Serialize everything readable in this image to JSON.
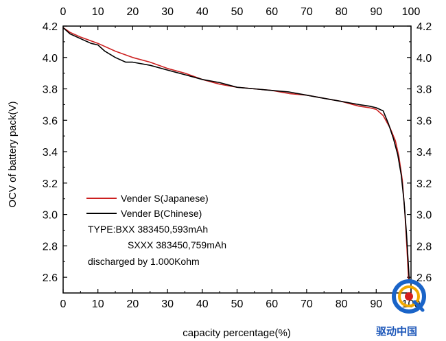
{
  "chart_data": {
    "type": "line",
    "xlabel": "capacity percentage(%)",
    "ylabel": "OCV of battery pack(V)",
    "xlim": [
      0,
      100
    ],
    "ylim": [
      2.5,
      4.2
    ],
    "x_ticks": [
      0,
      10,
      20,
      30,
      40,
      50,
      60,
      70,
      80,
      90,
      100
    ],
    "y_ticks": [
      2.6,
      2.8,
      3.0,
      3.2,
      3.4,
      3.6,
      3.8,
      4.0,
      4.2
    ],
    "y_tick_labels": [
      "2.6",
      "2.8",
      "3.0",
      "3.2",
      "3.4",
      "3.6",
      "3.8",
      "4.0",
      "4.2"
    ],
    "mirror_axes": true,
    "legend_position": "bottom-left",
    "series": [
      {
        "name": "Vender S(Japanese)",
        "color": "#cc2020",
        "x": [
          0,
          2,
          5,
          10,
          15,
          20,
          25,
          30,
          35,
          40,
          45,
          50,
          55,
          60,
          65,
          70,
          75,
          80,
          85,
          88,
          90,
          92,
          94,
          95.5,
          96.5,
          97.5,
          98.2,
          98.8,
          99.3
        ],
        "y": [
          4.19,
          4.16,
          4.13,
          4.09,
          4.04,
          4.0,
          3.97,
          3.93,
          3.9,
          3.86,
          3.83,
          3.81,
          3.8,
          3.79,
          3.77,
          3.76,
          3.74,
          3.72,
          3.69,
          3.68,
          3.67,
          3.63,
          3.55,
          3.47,
          3.37,
          3.22,
          3.02,
          2.8,
          2.58
        ]
      },
      {
        "name": "Vender B(Chinese)",
        "color": "#000000",
        "x": [
          0,
          2,
          5,
          8,
          10,
          12,
          15,
          18,
          20,
          25,
          30,
          35,
          40,
          45,
          50,
          55,
          60,
          65,
          70,
          75,
          80,
          85,
          88,
          90,
          92,
          93.5,
          95,
          96.2,
          97.2,
          98,
          98.7,
          99.2,
          99.5
        ],
        "y": [
          4.19,
          4.15,
          4.12,
          4.09,
          4.08,
          4.04,
          4.0,
          3.97,
          3.97,
          3.95,
          3.92,
          3.89,
          3.86,
          3.84,
          3.81,
          3.8,
          3.79,
          3.78,
          3.76,
          3.74,
          3.72,
          3.7,
          3.69,
          3.68,
          3.66,
          3.58,
          3.48,
          3.38,
          3.25,
          3.08,
          2.88,
          2.7,
          2.58
        ]
      }
    ],
    "annotations": [
      "TYPE:BXX 383450,593mAh",
      "SXXX 383450,759mAh",
      "discharged by 1.000Kohm"
    ]
  },
  "watermark": {
    "text": "驱动中国",
    "colors": {
      "ring_outer": "#1a64c8",
      "ring_inner": "#f2a800",
      "accent": "#d41e1e",
      "text": "#1a55b8"
    }
  }
}
